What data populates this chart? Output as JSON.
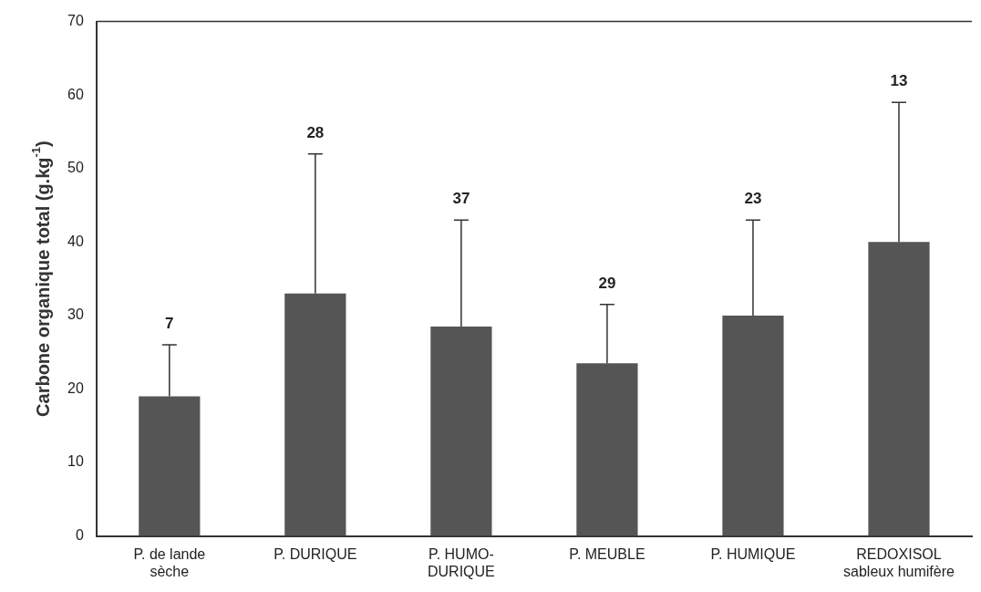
{
  "chart_data": {
    "type": "bar",
    "ylabel": "Carbone organique total (g.kg$^{-1}$)",
    "categories": [
      "P. de lande\nsèche",
      "P. DURIQUE",
      "P. HUMO-\nDURIQUE",
      "P. MEUBLE",
      "P. HUMIQUE",
      "REDOXISOL\nsableux humifère"
    ],
    "values": [
      19,
      33,
      28.5,
      23.5,
      30,
      40
    ],
    "errors": [
      [
        19,
        26
      ],
      [
        33,
        52
      ],
      [
        28.5,
        43
      ],
      [
        23.5,
        31.5
      ],
      [
        30,
        43
      ],
      [
        40,
        59
      ]
    ],
    "color": "#555555",
    "ylim": [
      0,
      70
    ],
    "yticks": [
      0,
      10,
      20,
      30,
      40,
      50,
      60,
      70
    ],
    "grid": false,
    "annotations": [
      {
        "text": "7",
        "x": "P. de lande\nsèche",
        "y": 26
      },
      {
        "text": "28",
        "x": "P. DURIQUE",
        "y": 52
      },
      {
        "text": "37",
        "x": "P. HUMO-\nDURIQUE",
        "y": 43
      },
      {
        "text": "29",
        "x": "P. MEUBLE",
        "y": 31.5
      },
      {
        "text": "23",
        "x": "P. HUMIQUE",
        "y": 43
      },
      {
        "text": "13",
        "x": "REDOXISOL\nsableux humifère",
        "y": 59
      }
    ]
  }
}
